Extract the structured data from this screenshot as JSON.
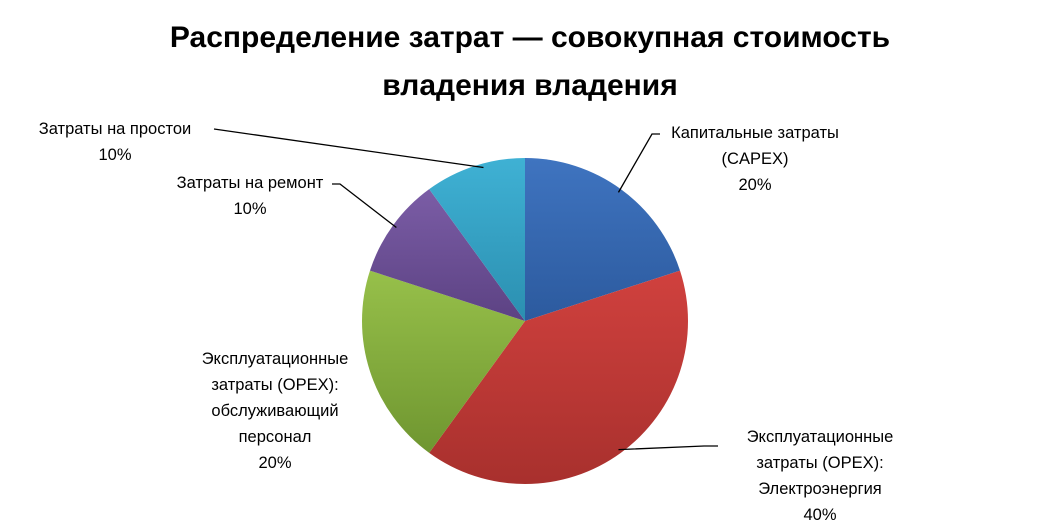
{
  "chart_data": {
    "type": "pie",
    "title": "Распределение затрат  — совокупная стоимость владения владения",
    "title_lines": [
      "Распределение затрат  — совокупная стоимость",
      "владения владения"
    ],
    "start_angle_deg": 0,
    "direction": "clockwise",
    "slices": [
      {
        "label": "Капитальные затраты (CAPEX)",
        "label_lines": [
          "Капитальные затраты",
          "(CAPEX)"
        ],
        "value": 20,
        "pct_label": "20%",
        "color": "#3f74c0",
        "color_dark": "#2c5a9e"
      },
      {
        "label": "Эксплуатационные затраты (OPEX): Электроэнергия",
        "label_lines": [
          "Эксплуатационные",
          "затраты (OPEX):",
          "Электроэнергия"
        ],
        "value": 40,
        "pct_label": "40%",
        "color": "#d0413e",
        "color_dark": "#a8302d"
      },
      {
        "label": "Эксплуатационные затраты (OPEX): обслуживающий персонал",
        "label_lines": [
          "Эксплуатационные",
          "затраты (OPEX):",
          "обслуживающий",
          "персонал"
        ],
        "value": 20,
        "pct_label": "20%",
        "color": "#97c04a",
        "color_dark": "#6f9630"
      },
      {
        "label": "Затраты на ремонт",
        "label_lines": [
          "Затраты на ремонт"
        ],
        "value": 10,
        "pct_label": "10%",
        "color": "#7b5da6",
        "color_dark": "#5c4283"
      },
      {
        "label": "Затраты на простои",
        "label_lines": [
          "Затраты на простои"
        ],
        "value": 10,
        "pct_label": "10%",
        "color": "#3fb1d4",
        "color_dark": "#2b8fb0"
      }
    ],
    "legend": "none",
    "data_labels": "outside with leader lines"
  }
}
